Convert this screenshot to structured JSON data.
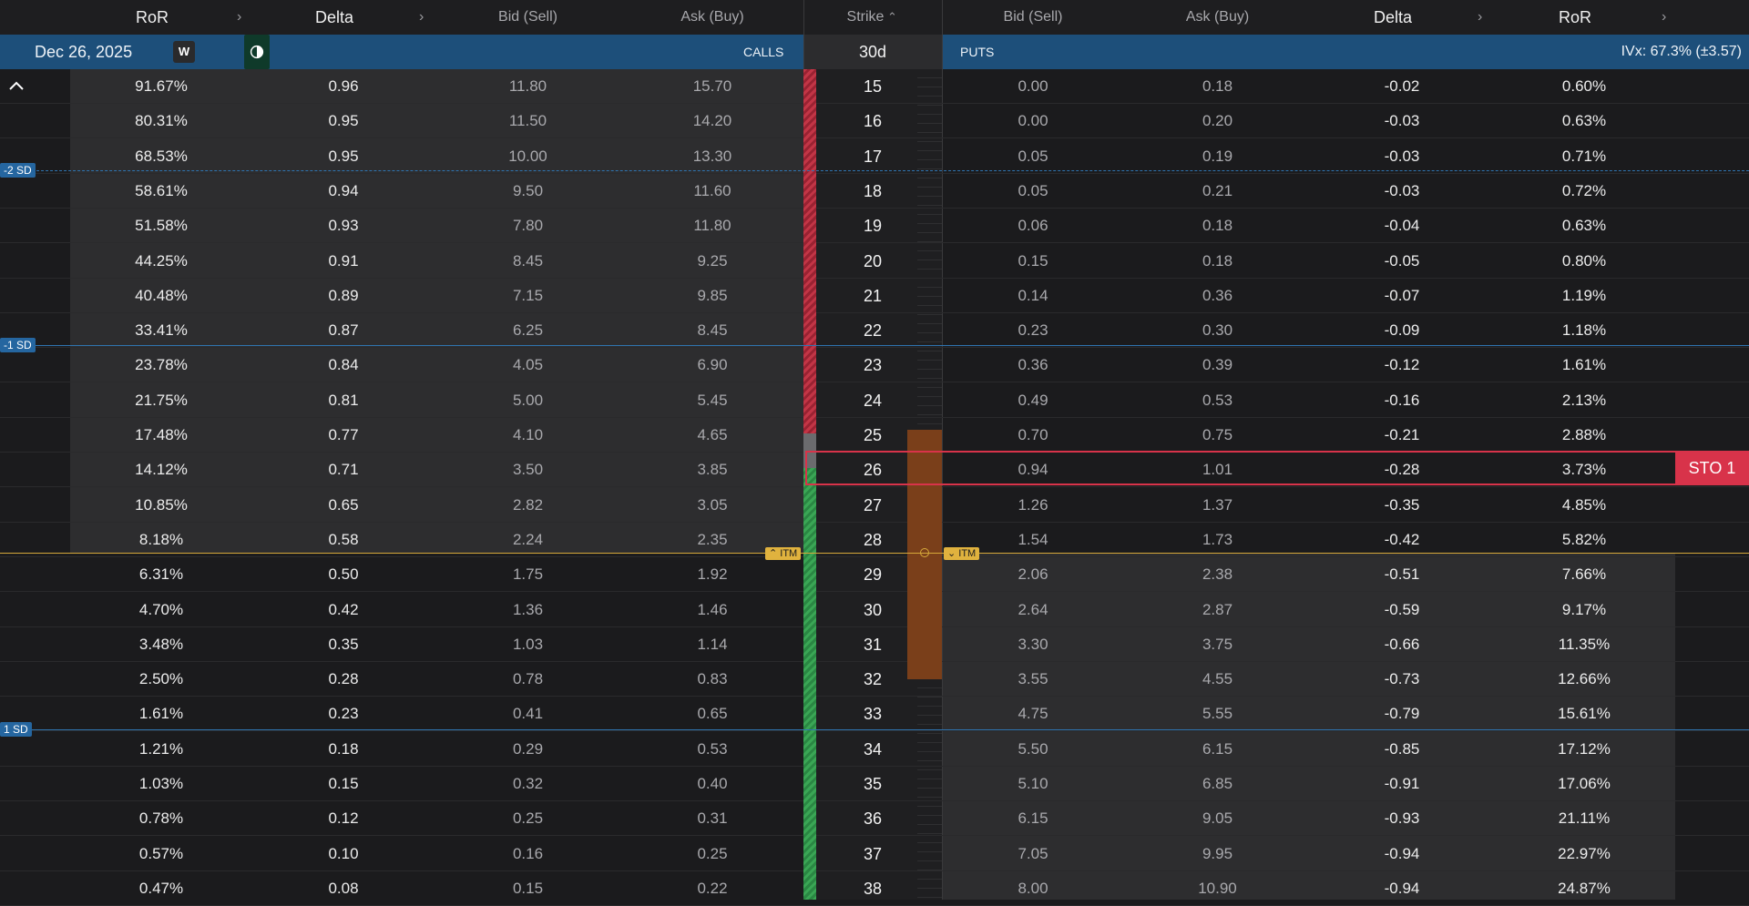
{
  "header": {
    "call_ror": "RoR",
    "call_delta": "Delta",
    "call_bid": "Bid (Sell)",
    "call_ask": "Ask (Buy)",
    "strike": "Strike",
    "put_bid": "Bid (Sell)",
    "put_ask": "Ask (Buy)",
    "put_delta": "Delta",
    "put_ror": "RoR"
  },
  "expiry_bar": {
    "date": "Dec 26, 2025",
    "w_label": "W",
    "calls_label": "CALLS",
    "dte": "30d",
    "puts_label": "PUTS",
    "ivx": "IVx: 67.3% (±3.57)"
  },
  "sd_labels": {
    "minus2": "-2 SD",
    "minus1": "-1 SD",
    "plus1": "1 SD"
  },
  "itm_label": "ITM",
  "order_button": "STO 1",
  "colors": {
    "accent_blue": "#1d4f7a",
    "sell_red": "#d8334a",
    "itm_yellow": "#e0b23e",
    "buy_green": "#3aa655"
  },
  "rows": [
    {
      "strike": "15",
      "call_ror": "91.67%",
      "call_delta": "0.96",
      "call_bid": "11.80",
      "call_ask": "15.70",
      "put_bid": "0.00",
      "put_ask": "0.18",
      "put_delta": "-0.02",
      "put_ror": "0.60%"
    },
    {
      "strike": "16",
      "call_ror": "80.31%",
      "call_delta": "0.95",
      "call_bid": "11.50",
      "call_ask": "14.20",
      "put_bid": "0.00",
      "put_ask": "0.20",
      "put_delta": "-0.03",
      "put_ror": "0.63%"
    },
    {
      "strike": "17",
      "call_ror": "68.53%",
      "call_delta": "0.95",
      "call_bid": "10.00",
      "call_ask": "13.30",
      "put_bid": "0.05",
      "put_ask": "0.19",
      "put_delta": "-0.03",
      "put_ror": "0.71%"
    },
    {
      "strike": "18",
      "call_ror": "58.61%",
      "call_delta": "0.94",
      "call_bid": "9.50",
      "call_ask": "11.60",
      "put_bid": "0.05",
      "put_ask": "0.21",
      "put_delta": "-0.03",
      "put_ror": "0.72%"
    },
    {
      "strike": "19",
      "call_ror": "51.58%",
      "call_delta": "0.93",
      "call_bid": "7.80",
      "call_ask": "11.80",
      "put_bid": "0.06",
      "put_ask": "0.18",
      "put_delta": "-0.04",
      "put_ror": "0.63%"
    },
    {
      "strike": "20",
      "call_ror": "44.25%",
      "call_delta": "0.91",
      "call_bid": "8.45",
      "call_ask": "9.25",
      "put_bid": "0.15",
      "put_ask": "0.18",
      "put_delta": "-0.05",
      "put_ror": "0.80%"
    },
    {
      "strike": "21",
      "call_ror": "40.48%",
      "call_delta": "0.89",
      "call_bid": "7.15",
      "call_ask": "9.85",
      "put_bid": "0.14",
      "put_ask": "0.36",
      "put_delta": "-0.07",
      "put_ror": "1.19%"
    },
    {
      "strike": "22",
      "call_ror": "33.41%",
      "call_delta": "0.87",
      "call_bid": "6.25",
      "call_ask": "8.45",
      "put_bid": "0.23",
      "put_ask": "0.30",
      "put_delta": "-0.09",
      "put_ror": "1.18%"
    },
    {
      "strike": "23",
      "call_ror": "23.78%",
      "call_delta": "0.84",
      "call_bid": "4.05",
      "call_ask": "6.90",
      "put_bid": "0.36",
      "put_ask": "0.39",
      "put_delta": "-0.12",
      "put_ror": "1.61%"
    },
    {
      "strike": "24",
      "call_ror": "21.75%",
      "call_delta": "0.81",
      "call_bid": "5.00",
      "call_ask": "5.45",
      "put_bid": "0.49",
      "put_ask": "0.53",
      "put_delta": "-0.16",
      "put_ror": "2.13%"
    },
    {
      "strike": "25",
      "call_ror": "17.48%",
      "call_delta": "0.77",
      "call_bid": "4.10",
      "call_ask": "4.65",
      "put_bid": "0.70",
      "put_ask": "0.75",
      "put_delta": "-0.21",
      "put_ror": "2.88%"
    },
    {
      "strike": "26",
      "call_ror": "14.12%",
      "call_delta": "0.71",
      "call_bid": "3.50",
      "call_ask": "3.85",
      "put_bid": "0.94",
      "put_ask": "1.01",
      "put_delta": "-0.28",
      "put_ror": "3.73%"
    },
    {
      "strike": "27",
      "call_ror": "10.85%",
      "call_delta": "0.65",
      "call_bid": "2.82",
      "call_ask": "3.05",
      "put_bid": "1.26",
      "put_ask": "1.37",
      "put_delta": "-0.35",
      "put_ror": "4.85%"
    },
    {
      "strike": "28",
      "call_ror": "8.18%",
      "call_delta": "0.58",
      "call_bid": "2.24",
      "call_ask": "2.35",
      "put_bid": "1.54",
      "put_ask": "1.73",
      "put_delta": "-0.42",
      "put_ror": "5.82%"
    },
    {
      "strike": "29",
      "call_ror": "6.31%",
      "call_delta": "0.50",
      "call_bid": "1.75",
      "call_ask": "1.92",
      "put_bid": "2.06",
      "put_ask": "2.38",
      "put_delta": "-0.51",
      "put_ror": "7.66%"
    },
    {
      "strike": "30",
      "call_ror": "4.70%",
      "call_delta": "0.42",
      "call_bid": "1.36",
      "call_ask": "1.46",
      "put_bid": "2.64",
      "put_ask": "2.87",
      "put_delta": "-0.59",
      "put_ror": "9.17%"
    },
    {
      "strike": "31",
      "call_ror": "3.48%",
      "call_delta": "0.35",
      "call_bid": "1.03",
      "call_ask": "1.14",
      "put_bid": "3.30",
      "put_ask": "3.75",
      "put_delta": "-0.66",
      "put_ror": "11.35%"
    },
    {
      "strike": "32",
      "call_ror": "2.50%",
      "call_delta": "0.28",
      "call_bid": "0.78",
      "call_ask": "0.83",
      "put_bid": "3.55",
      "put_ask": "4.55",
      "put_delta": "-0.73",
      "put_ror": "12.66%"
    },
    {
      "strike": "33",
      "call_ror": "1.61%",
      "call_delta": "0.23",
      "call_bid": "0.41",
      "call_ask": "0.65",
      "put_bid": "4.75",
      "put_ask": "5.55",
      "put_delta": "-0.79",
      "put_ror": "15.61%"
    },
    {
      "strike": "34",
      "call_ror": "1.21%",
      "call_delta": "0.18",
      "call_bid": "0.29",
      "call_ask": "0.53",
      "put_bid": "5.50",
      "put_ask": "6.15",
      "put_delta": "-0.85",
      "put_ror": "17.12%"
    },
    {
      "strike": "35",
      "call_ror": "1.03%",
      "call_delta": "0.15",
      "call_bid": "0.32",
      "call_ask": "0.40",
      "put_bid": "5.10",
      "put_ask": "6.85",
      "put_delta": "-0.91",
      "put_ror": "17.06%"
    },
    {
      "strike": "36",
      "call_ror": "0.78%",
      "call_delta": "0.12",
      "call_bid": "0.25",
      "call_ask": "0.31",
      "put_bid": "6.15",
      "put_ask": "9.05",
      "put_delta": "-0.93",
      "put_ror": "21.11%"
    },
    {
      "strike": "37",
      "call_ror": "0.57%",
      "call_delta": "0.10",
      "call_bid": "0.16",
      "call_ask": "0.25",
      "put_bid": "7.05",
      "put_ask": "9.95",
      "put_delta": "-0.94",
      "put_ror": "22.97%"
    },
    {
      "strike": "38",
      "call_ror": "0.47%",
      "call_delta": "0.08",
      "call_bid": "0.15",
      "call_ask": "0.22",
      "put_bid": "8.00",
      "put_ask": "10.90",
      "put_delta": "-0.94",
      "put_ror": "24.87%"
    }
  ]
}
